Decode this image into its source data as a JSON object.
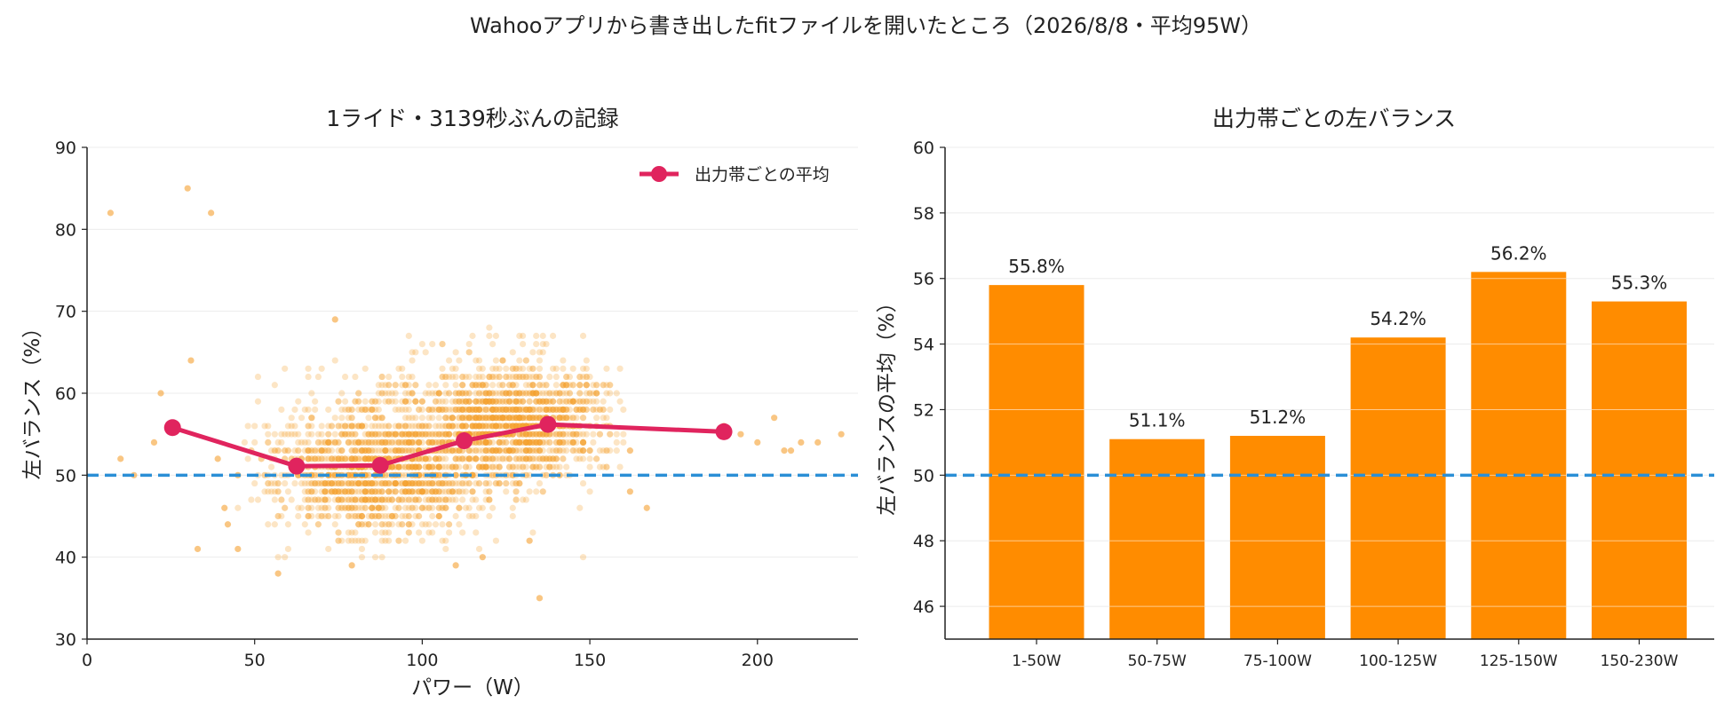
{
  "figure_title": "Wahooアプリから書き出したfitファイルを開いたところ（2026/8/8・平均95W）",
  "colors": {
    "accent_line": "#e0245e",
    "scatter": "#f5a030",
    "bar": "#ff8c00",
    "reference": "#2b8fd6",
    "grid": "#ececec",
    "axis": "#222222"
  },
  "chart_data": [
    {
      "type": "scatter",
      "title": "1ライド・3139秒ぶんの記録",
      "xlabel": "パワー（W）",
      "ylabel": "左バランス（%）",
      "xlim": [
        0,
        230
      ],
      "ylim": [
        30,
        90
      ],
      "xticks": [
        0,
        50,
        100,
        150,
        200
      ],
      "yticks": [
        30,
        40,
        50,
        60,
        70,
        80,
        90
      ],
      "grid": "horizontal",
      "reference_line": 50,
      "legend": {
        "position": "top-right",
        "entries": [
          "出力帯ごとの平均"
        ]
      },
      "points_note_count": 3139,
      "outliers": [
        {
          "x": 7,
          "y": 82
        },
        {
          "x": 30,
          "y": 85
        },
        {
          "x": 37,
          "y": 82
        },
        {
          "x": 31,
          "y": 64
        },
        {
          "x": 22,
          "y": 60
        },
        {
          "x": 10,
          "y": 52
        },
        {
          "x": 20,
          "y": 54
        },
        {
          "x": 33,
          "y": 41
        },
        {
          "x": 45,
          "y": 41
        },
        {
          "x": 57,
          "y": 38
        },
        {
          "x": 39,
          "y": 52
        },
        {
          "x": 41,
          "y": 46
        },
        {
          "x": 42,
          "y": 44
        },
        {
          "x": 74,
          "y": 69
        },
        {
          "x": 79,
          "y": 39
        },
        {
          "x": 110,
          "y": 39
        },
        {
          "x": 118,
          "y": 40
        },
        {
          "x": 132,
          "y": 42
        },
        {
          "x": 135,
          "y": 35
        },
        {
          "x": 162,
          "y": 53
        },
        {
          "x": 162,
          "y": 48
        },
        {
          "x": 167,
          "y": 46
        },
        {
          "x": 190,
          "y": 56
        },
        {
          "x": 195,
          "y": 55
        },
        {
          "x": 200,
          "y": 54
        },
        {
          "x": 205,
          "y": 57
        },
        {
          "x": 210,
          "y": 53
        },
        {
          "x": 213,
          "y": 54
        },
        {
          "x": 218,
          "y": 54
        },
        {
          "x": 225,
          "y": 55
        },
        {
          "x": 208,
          "y": 53
        },
        {
          "x": 14,
          "y": 50
        }
      ],
      "clusters": [
        {
          "cx": 87,
          "cy": 50,
          "sx": 16,
          "sy": 3.6,
          "n": 1300
        },
        {
          "cx": 128,
          "cy": 56.5,
          "sx": 13,
          "sy": 3.2,
          "n": 1200
        },
        {
          "cx": 105,
          "cy": 55,
          "sx": 24,
          "sy": 5.2,
          "n": 620
        }
      ],
      "series": [
        {
          "name": "出力帯ごとの平均",
          "x": [
            25.5,
            62.5,
            87.5,
            112.5,
            137.5,
            190
          ],
          "y": [
            55.8,
            51.1,
            51.2,
            54.2,
            56.2,
            55.3
          ]
        }
      ]
    },
    {
      "type": "bar",
      "title": "出力帯ごとの左バランス",
      "xlabel": "",
      "ylabel": "左バランスの平均（%）",
      "categories": [
        "1-50W",
        "50-75W",
        "75-100W",
        "100-125W",
        "125-150W",
        "150-230W"
      ],
      "values": [
        55.8,
        51.1,
        51.2,
        54.2,
        56.2,
        55.3
      ],
      "data_labels": [
        "55.8%",
        "51.1%",
        "51.2%",
        "54.2%",
        "56.2%",
        "55.3%"
      ],
      "ylim": [
        45,
        60
      ],
      "yticks": [
        46,
        48,
        50,
        52,
        54,
        56,
        58,
        60
      ],
      "grid": "horizontal",
      "reference_line": 50
    }
  ]
}
